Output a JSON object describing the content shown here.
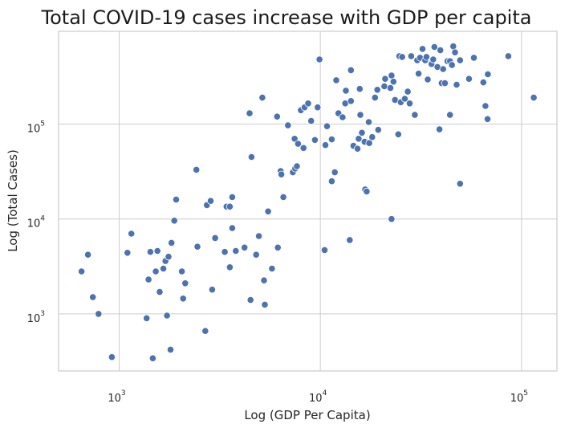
{
  "chart_data": {
    "type": "scatter",
    "title": "Total COVID-19 cases increase with GDP per capita",
    "xlabel": "Log (GDP Per Capita)",
    "ylabel": "Log (Total Cases)",
    "xscale": "log",
    "yscale": "log",
    "xlim": [
      500,
      150000
    ],
    "ylim": [
      250,
      950000
    ],
    "grid": true,
    "color": "#4c72b0",
    "x_ticks": [
      {
        "base": "10",
        "exp": "3",
        "value": 1000
      },
      {
        "base": "10",
        "exp": "4",
        "value": 10000
      },
      {
        "base": "10",
        "exp": "5",
        "value": 100000
      }
    ],
    "y_ticks": [
      {
        "base": "10",
        "exp": "3",
        "value": 1000
      },
      {
        "base": "10",
        "exp": "4",
        "value": 10000
      },
      {
        "base": "10",
        "exp": "5",
        "value": 100000
      }
    ],
    "points": [
      [
        650,
        2800
      ],
      [
        700,
        4200
      ],
      [
        740,
        1500
      ],
      [
        790,
        1000
      ],
      [
        920,
        350
      ],
      [
        1100,
        4400
      ],
      [
        1150,
        7000
      ],
      [
        1370,
        900
      ],
      [
        1400,
        2300
      ],
      [
        1430,
        4500
      ],
      [
        1470,
        340
      ],
      [
        1520,
        2800
      ],
      [
        1550,
        4600
      ],
      [
        1590,
        1700
      ],
      [
        1660,
        3000
      ],
      [
        1700,
        3600
      ],
      [
        1730,
        960
      ],
      [
        1760,
        4000
      ],
      [
        1800,
        420
      ],
      [
        1820,
        5600
      ],
      [
        1880,
        9600
      ],
      [
        1920,
        16000
      ],
      [
        2050,
        2800
      ],
      [
        2080,
        1450
      ],
      [
        2130,
        2100
      ],
      [
        2420,
        33000
      ],
      [
        2450,
        5100
      ],
      [
        2680,
        660
      ],
      [
        2730,
        14000
      ],
      [
        2850,
        15500
      ],
      [
        2900,
        1800
      ],
      [
        3000,
        6300
      ],
      [
        3350,
        4500
      ],
      [
        3420,
        13500
      ],
      [
        3550,
        13500
      ],
      [
        3550,
        3100
      ],
      [
        3650,
        17000
      ],
      [
        3650,
        8000
      ],
      [
        3800,
        4600
      ],
      [
        4200,
        5000
      ],
      [
        4450,
        130000
      ],
      [
        4500,
        1400
      ],
      [
        4550,
        45000
      ],
      [
        4800,
        4200
      ],
      [
        4950,
        6600
      ],
      [
        5150,
        190000
      ],
      [
        5250,
        2250
      ],
      [
        5300,
        1250
      ],
      [
        5500,
        12000
      ],
      [
        5750,
        3000
      ],
      [
        6100,
        120000
      ],
      [
        6150,
        5000
      ],
      [
        6350,
        32000
      ],
      [
        6400,
        29500
      ],
      [
        6550,
        17000
      ],
      [
        6900,
        97000
      ],
      [
        7300,
        31000
      ],
      [
        7450,
        70000
      ],
      [
        7500,
        34000
      ],
      [
        7650,
        36000
      ],
      [
        7750,
        62000
      ],
      [
        8000,
        140000
      ],
      [
        8250,
        56000
      ],
      [
        8350,
        150000
      ],
      [
        8700,
        165000
      ],
      [
        9000,
        108000
      ],
      [
        9400,
        68000
      ],
      [
        9700,
        150000
      ],
      [
        9900,
        480000
      ],
      [
        10500,
        4700
      ],
      [
        10600,
        60000
      ],
      [
        10800,
        95000
      ],
      [
        11400,
        69000
      ],
      [
        11400,
        25000
      ],
      [
        11800,
        31000
      ],
      [
        12000,
        290000
      ],
      [
        12300,
        130000
      ],
      [
        12900,
        118000
      ],
      [
        13300,
        165000
      ],
      [
        13400,
        225000
      ],
      [
        14000,
        6000
      ],
      [
        14200,
        370000
      ],
      [
        14200,
        175000
      ],
      [
        14600,
        59000
      ],
      [
        15300,
        55000
      ],
      [
        15500,
        70000
      ],
      [
        15700,
        235000
      ],
      [
        15800,
        125000
      ],
      [
        16100,
        81000
      ],
      [
        16600,
        65000
      ],
      [
        16700,
        20500
      ],
      [
        17000,
        19500
      ],
      [
        17400,
        105000
      ],
      [
        17500,
        63000
      ],
      [
        18100,
        73000
      ],
      [
        18700,
        190000
      ],
      [
        19200,
        230000
      ],
      [
        19400,
        87000
      ],
      [
        20800,
        250000
      ],
      [
        21000,
        300000
      ],
      [
        22300,
        240000
      ],
      [
        22600,
        10000
      ],
      [
        22600,
        325000
      ],
      [
        23100,
        280000
      ],
      [
        23500,
        180000
      ],
      [
        24400,
        78000
      ],
      [
        24700,
        520000
      ],
      [
        25100,
        170000
      ],
      [
        25500,
        510000
      ],
      [
        26300,
        185000
      ],
      [
        27200,
        220000
      ],
      [
        27800,
        165000
      ],
      [
        28300,
        520000
      ],
      [
        29500,
        125000
      ],
      [
        30300,
        470000
      ],
      [
        30800,
        340000
      ],
      [
        31300,
        500000
      ],
      [
        32200,
        620000
      ],
      [
        33200,
        470000
      ],
      [
        33700,
        510000
      ],
      [
        34200,
        295000
      ],
      [
        35700,
        430000
      ],
      [
        36400,
        480000
      ],
      [
        36900,
        650000
      ],
      [
        38200,
        400000
      ],
      [
        39100,
        88000
      ],
      [
        39500,
        600000
      ],
      [
        40100,
        270000
      ],
      [
        40800,
        380000
      ],
      [
        41600,
        270000
      ],
      [
        42800,
        460000
      ],
      [
        44100,
        460000
      ],
      [
        44100,
        125000
      ],
      [
        45100,
        420000
      ],
      [
        45800,
        660000
      ],
      [
        46700,
        570000
      ],
      [
        47600,
        260000
      ],
      [
        49500,
        23500
      ],
      [
        49500,
        470000
      ],
      [
        54800,
        300000
      ],
      [
        58000,
        500000
      ],
      [
        64600,
        275000
      ],
      [
        66200,
        155000
      ],
      [
        67800,
        113000
      ],
      [
        68000,
        335000
      ],
      [
        86000,
        520000
      ],
      [
        115000,
        190000
      ]
    ]
  }
}
